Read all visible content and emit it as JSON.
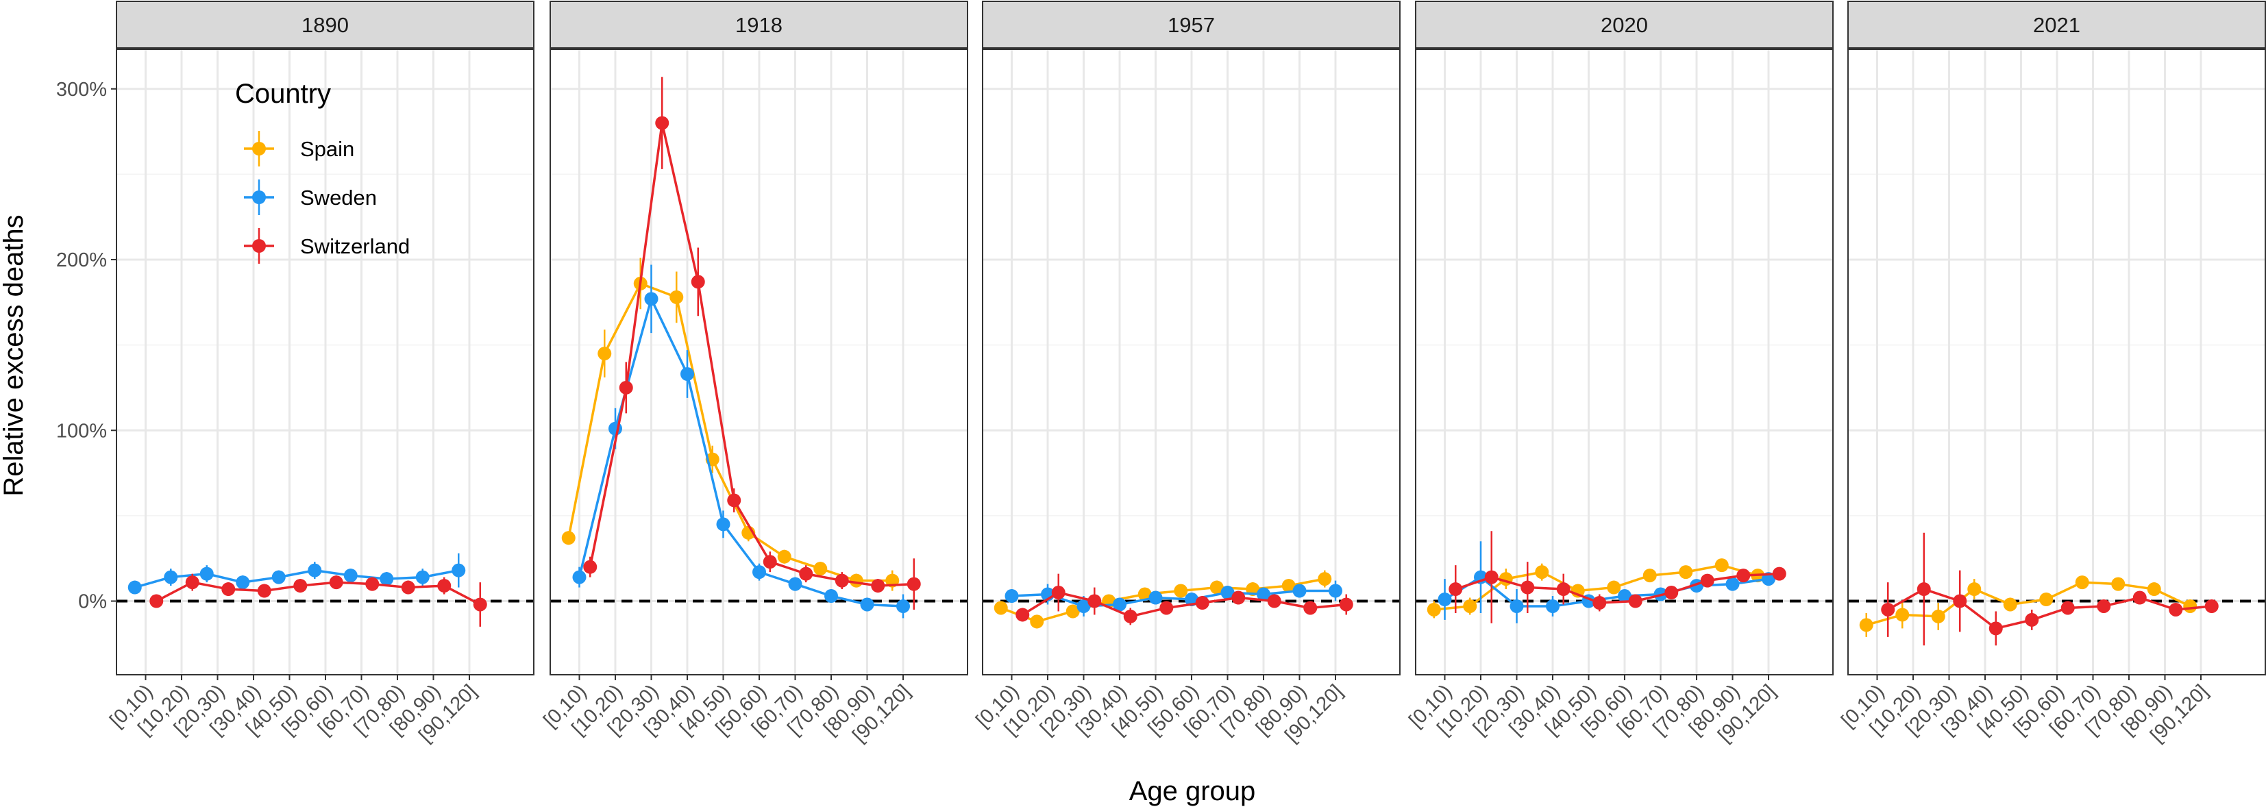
{
  "chart_data": {
    "type": "line",
    "ylabel": "Relative excess deaths",
    "xlabel": "Age group",
    "y_unit": "%",
    "ylim": [
      -42,
      325
    ],
    "yticks": [
      0,
      100,
      200,
      300
    ],
    "ytick_labels": [
      "0%",
      "100%",
      "200%",
      "300%"
    ],
    "categories": [
      "[0,10)",
      "[10,20)",
      "[20,30)",
      "[30,40)",
      "[40,50)",
      "[50,60)",
      "[60,70)",
      "[70,80)",
      "[80,90)",
      "[90,120]"
    ],
    "grid": true,
    "reference_line": {
      "y": 0,
      "style": "dashed"
    },
    "legend": {
      "title": "Country",
      "placement": "top-left",
      "entries": [
        "Spain",
        "Sweden",
        "Switzerland"
      ]
    },
    "colors": {
      "Spain": "#FFB000",
      "Sweden": "#2196F3",
      "Switzerland": "#E8262A"
    },
    "panels": [
      {
        "title": "1890",
        "series": [
          {
            "name": "Sweden",
            "offset": -0.3,
            "values": [
              8,
              14,
              16,
              11,
              14,
              18,
              15,
              13,
              14,
              18
            ],
            "error": [
              3,
              5,
              5,
              4,
              4,
              5,
              4,
              4,
              5,
              10
            ]
          },
          {
            "name": "Switzerland",
            "offset": 0.3,
            "values": [
              0,
              11,
              7,
              6,
              9,
              11,
              10,
              8,
              9,
              -2
            ],
            "error": [
              3,
              5,
              4,
              4,
              4,
              4,
              4,
              4,
              5,
              13
            ]
          }
        ]
      },
      {
        "title": "1918",
        "series": [
          {
            "name": "Spain",
            "offset": -0.3,
            "values": [
              37,
              145,
              186,
              178,
              83,
              40,
              26,
              19,
              12,
              12
            ],
            "error": [
              4,
              14,
              15,
              15,
              8,
              5,
              4,
              4,
              4,
              6
            ]
          },
          {
            "name": "Sweden",
            "offset": 0,
            "values": [
              14,
              101,
              177,
              133,
              45,
              17,
              10,
              3,
              -2,
              -3
            ],
            "error": [
              6,
              12,
              20,
              14,
              8,
              5,
              4,
              4,
              4,
              7
            ]
          },
          {
            "name": "Switzerland",
            "offset": 0.3,
            "values": [
              20,
              125,
              280,
              187,
              59,
              23,
              16,
              12,
              9,
              10
            ],
            "error": [
              6,
              15,
              27,
              20,
              7,
              6,
              5,
              5,
              4,
              15
            ]
          }
        ]
      },
      {
        "title": "1957",
        "series": [
          {
            "name": "Spain",
            "offset": -0.3,
            "values": [
              -4,
              -12,
              -6,
              0,
              4,
              6,
              8,
              7,
              9,
              13
            ],
            "error": [
              4,
              4,
              4,
              3,
              3,
              3,
              4,
              4,
              4,
              5
            ]
          },
          {
            "name": "Sweden",
            "offset": 0,
            "values": [
              3,
              4,
              -3,
              -2,
              2,
              1,
              5,
              4,
              6,
              6
            ],
            "error": [
              4,
              6,
              6,
              4,
              4,
              4,
              4,
              4,
              4,
              6
            ]
          },
          {
            "name": "Switzerland",
            "offset": 0.3,
            "values": [
              -8,
              5,
              0,
              -9,
              -4,
              -1,
              2,
              0,
              -4,
              -2
            ],
            "error": [
              4,
              11,
              8,
              5,
              4,
              4,
              4,
              4,
              4,
              6
            ]
          }
        ]
      },
      {
        "title": "2020",
        "series": [
          {
            "name": "Spain",
            "offset": -0.3,
            "values": [
              -5,
              -3,
              13,
              17,
              6,
              8,
              15,
              17,
              21,
              15
            ],
            "error": [
              5,
              5,
              6,
              5,
              3,
              3,
              3,
              3,
              3,
              3
            ]
          },
          {
            "name": "Sweden",
            "offset": 0,
            "values": [
              1,
              14,
              -3,
              -3,
              0,
              3,
              4,
              9,
              10,
              13
            ],
            "error": [
              12,
              21,
              10,
              6,
              4,
              3,
              3,
              3,
              3,
              3
            ]
          },
          {
            "name": "Switzerland",
            "offset": 0.3,
            "values": [
              7,
              14,
              8,
              7,
              -1,
              0,
              5,
              12,
              15,
              16
            ],
            "error": [
              14,
              27,
              15,
              9,
              5,
              4,
              3,
              3,
              3,
              3
            ]
          }
        ]
      },
      {
        "title": "2021",
        "series": [
          {
            "name": "Spain",
            "offset": -0.3,
            "values": [
              -14,
              -8,
              -9,
              7,
              -2,
              1,
              11,
              10,
              7,
              -3
            ],
            "error": [
              7,
              8,
              8,
              6,
              4,
              3,
              3,
              3,
              3,
              3
            ]
          },
          {
            "name": "Switzerland",
            "offset": 0.3,
            "values": [
              -5,
              7,
              0,
              -16,
              -11,
              -4,
              -3,
              2,
              -5,
              -3
            ],
            "error": [
              16,
              33,
              18,
              10,
              6,
              4,
              3,
              3,
              3,
              3
            ]
          }
        ]
      }
    ]
  }
}
